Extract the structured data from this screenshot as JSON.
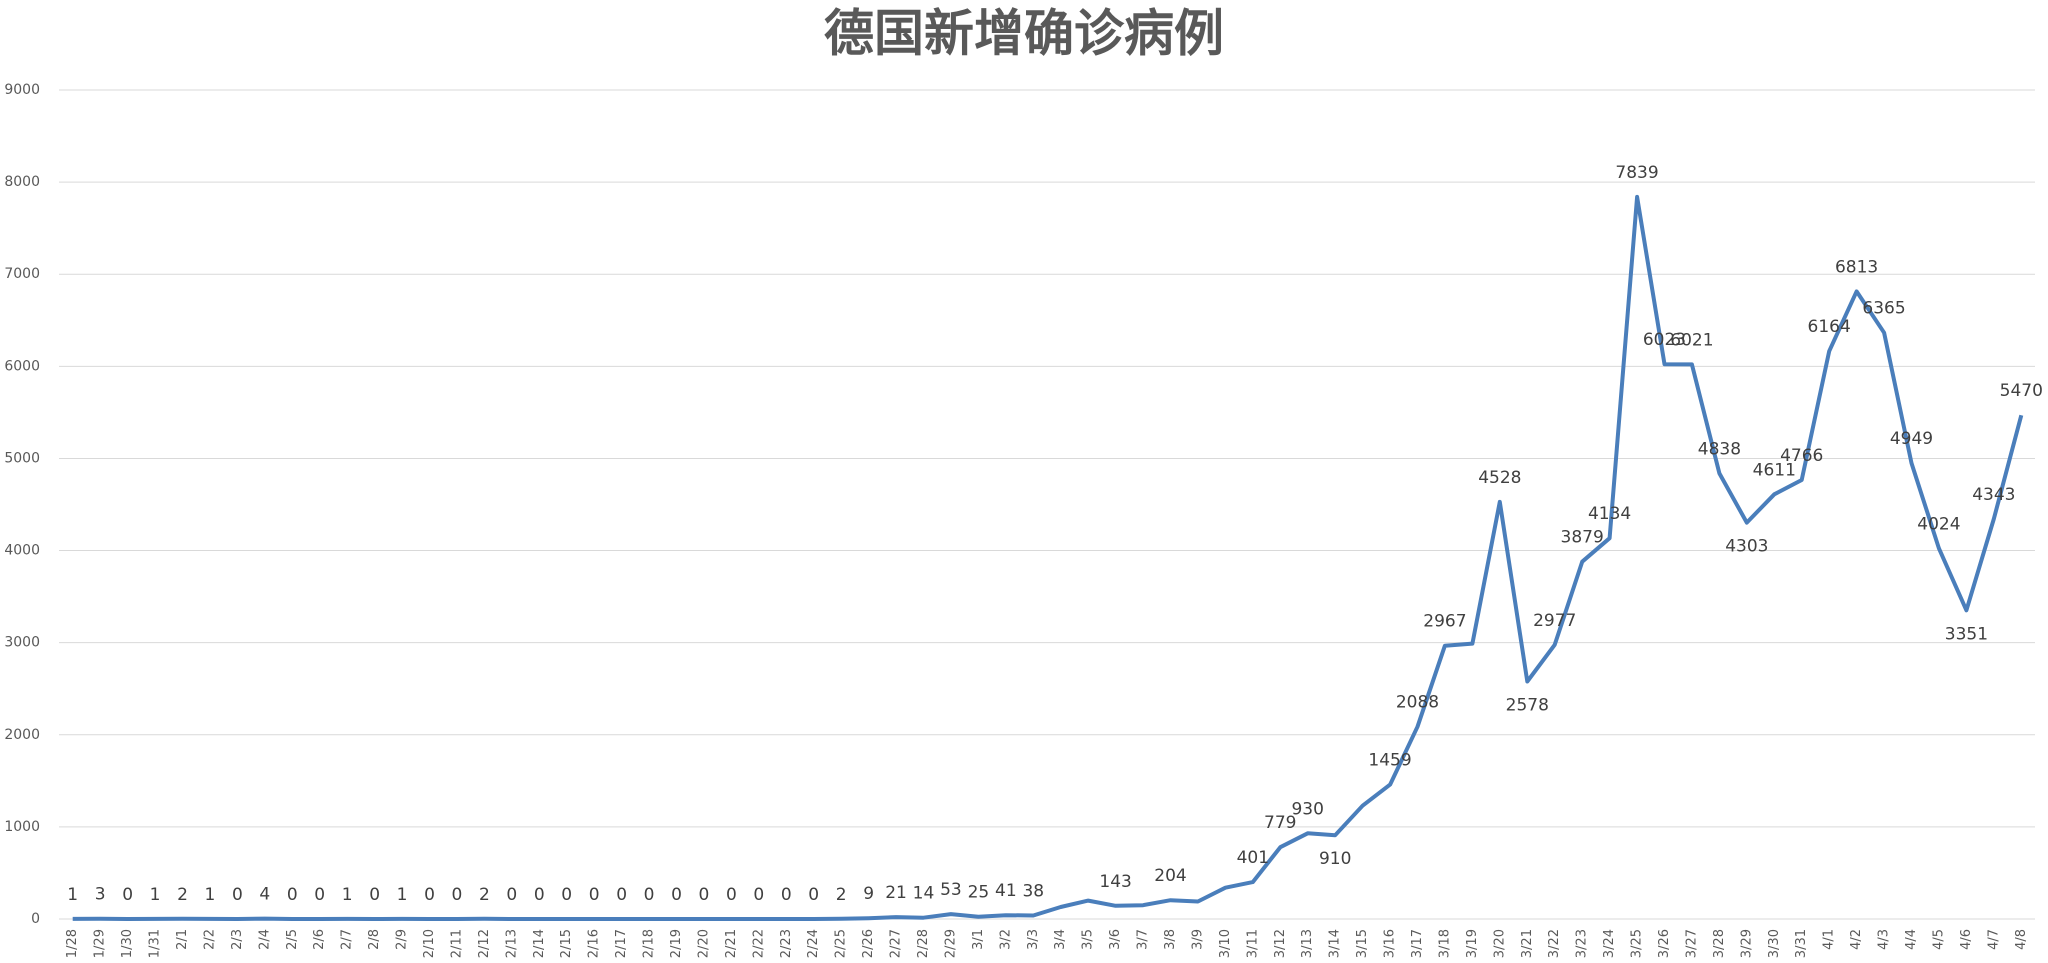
{
  "chart_data": {
    "type": "line",
    "title": "德国新增确诊病例",
    "categories": [
      "1/28",
      "1/29",
      "1/30",
      "1/31",
      "2/1",
      "2/2",
      "2/3",
      "2/4",
      "2/5",
      "2/6",
      "2/7",
      "2/8",
      "2/9",
      "2/10",
      "2/11",
      "2/12",
      "2/13",
      "2/14",
      "2/15",
      "2/16",
      "2/17",
      "2/18",
      "2/19",
      "2/20",
      "2/21",
      "2/22",
      "2/23",
      "2/24",
      "2/25",
      "2/26",
      "2/27",
      "2/28",
      "2/29",
      "3/1",
      "3/2",
      "3/3",
      "3/4",
      "3/5",
      "3/6",
      "3/7",
      "3/8",
      "3/9",
      "3/10",
      "3/11",
      "3/12",
      "3/13",
      "3/14",
      "3/15",
      "3/16",
      "3/17",
      "3/18",
      "3/19",
      "3/20",
      "3/21",
      "3/22",
      "3/23",
      "3/24",
      "3/25",
      "3/26",
      "3/27",
      "3/28",
      "3/29",
      "3/30",
      "3/31",
      "4/1",
      "4/2",
      "4/3",
      "4/4",
      "4/5",
      "4/6",
      "4/7",
      "4/8"
    ],
    "series": [
      {
        "name": "新增确诊",
        "color": "#4a7ebb",
        "values": [
          1,
          3,
          0,
          1,
          2,
          1,
          0,
          4,
          0,
          0,
          1,
          0,
          1,
          0,
          0,
          2,
          0,
          0,
          0,
          0,
          0,
          0,
          0,
          0,
          0,
          0,
          0,
          0,
          2,
          9,
          21,
          14,
          53,
          25,
          41,
          38,
          130,
          200,
          143,
          150,
          204,
          190,
          340,
          401,
          779,
          930,
          910,
          1230,
          1459,
          2088,
          2967,
          2990,
          4528,
          2578,
          2977,
          3879,
          4134,
          7839,
          6023,
          6021,
          4838,
          4303,
          4611,
          4766,
          6164,
          6813,
          6365,
          4949,
          4024,
          3351,
          4343,
          5470
        ],
        "value_labels": [
          "1",
          "3",
          "0",
          "1",
          "2",
          "1",
          "0",
          "4",
          "0",
          "0",
          "1",
          "0",
          "1",
          "0",
          "0",
          "2",
          "0",
          "0",
          "0",
          "0",
          "0",
          "0",
          "0",
          "0",
          "0",
          "0",
          "0",
          "0",
          "2",
          "9",
          "21",
          "14",
          "53",
          "25",
          "41",
          "38",
          null,
          null,
          "143",
          null,
          "204",
          null,
          null,
          "401",
          "779",
          "930",
          "910",
          null,
          "1459",
          "2088",
          "2967",
          null,
          "4528",
          "2578",
          "2977",
          "3879",
          "4134",
          "7839",
          "6023",
          "6021",
          "4838",
          "4303",
          "4611",
          "4766",
          "6164",
          "6813",
          "6365",
          "4949",
          "4024",
          "3351",
          "4343",
          "5470"
        ]
      }
    ],
    "ylim": [
      0,
      9000
    ],
    "yticks": [
      0,
      1000,
      2000,
      3000,
      4000,
      5000,
      6000,
      7000,
      8000,
      9000
    ],
    "grid": true
  }
}
